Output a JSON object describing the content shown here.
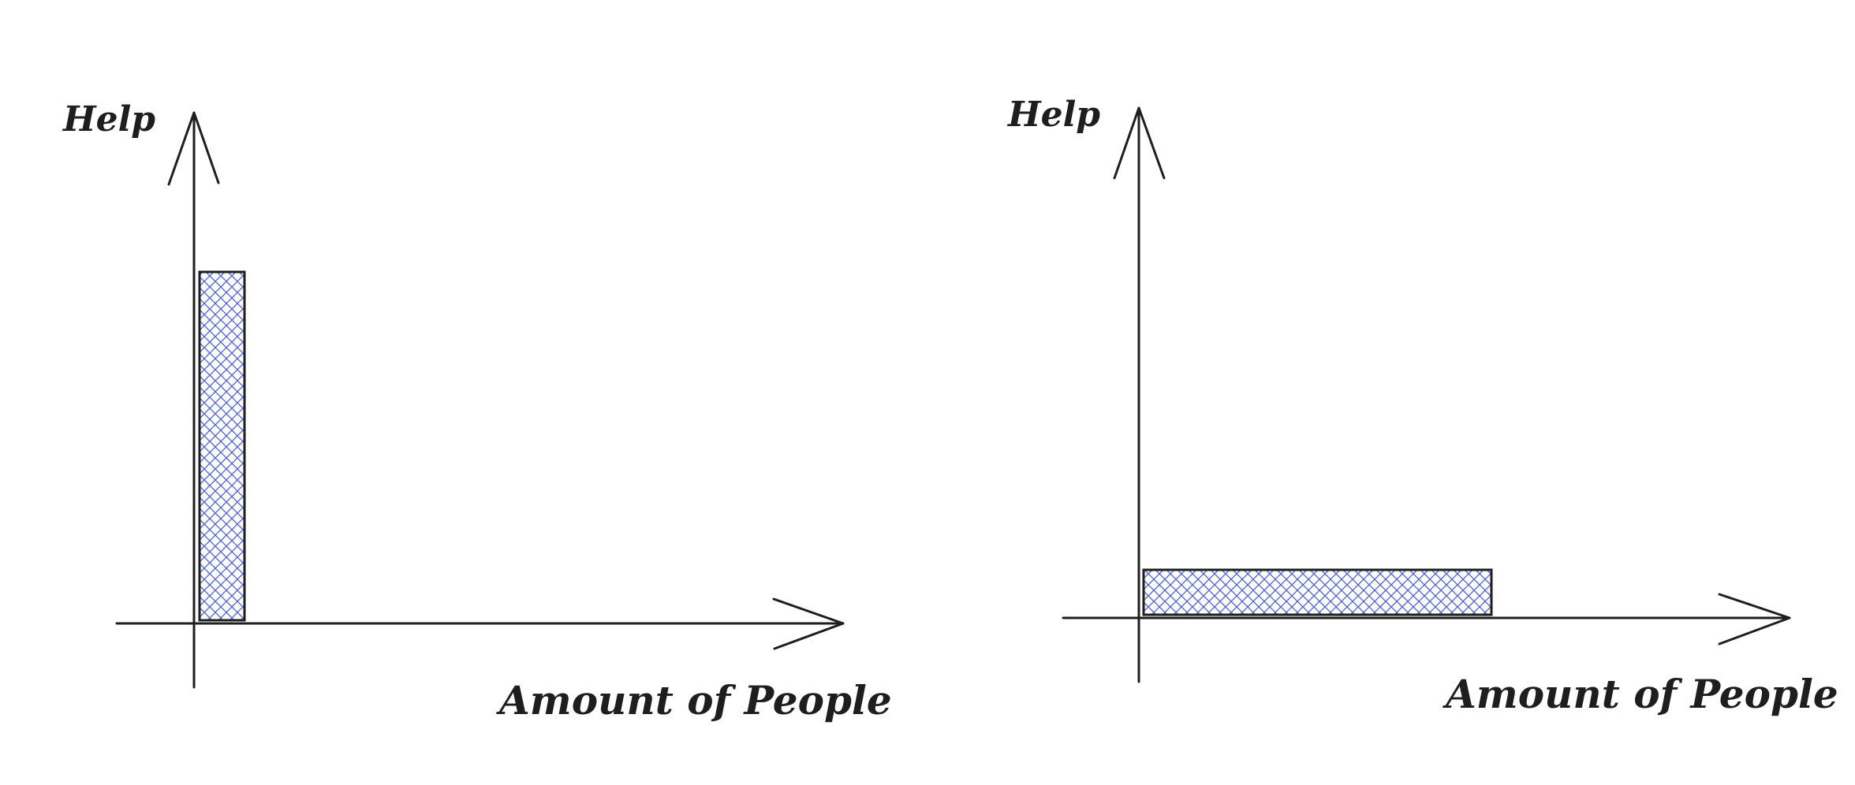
{
  "colors": {
    "stroke": "#1e1e1e",
    "hatch": "#4a5fd8"
  },
  "panels": [
    {
      "y_label": "Help",
      "x_label": "Amount of People",
      "bar": {
        "amount_of_people": "low",
        "help": "high",
        "fill": "cross-hatch"
      }
    },
    {
      "y_label": "Help",
      "x_label": "Amount of People",
      "bar": {
        "amount_of_people": "high",
        "help": "low",
        "fill": "cross-hatch"
      }
    }
  ]
}
